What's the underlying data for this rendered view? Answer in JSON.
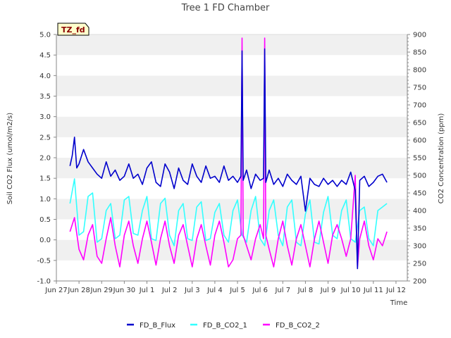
{
  "chart_data": {
    "type": "line",
    "title": "Tree 1 FD Chamber",
    "xlabel": "Time",
    "ylabel": "Soil CO2 Flux (umol/m2/s)",
    "y2label": "CO2 Concentration (ppm)",
    "badge": "TZ_fd",
    "x_tick_labels": [
      "Jun 27",
      "Jun 28",
      "Jun 29",
      "Jun 30",
      "Jul 1",
      "Jul 2",
      "Jul 3",
      "Jul 4",
      "Jul 5",
      "Jul 6",
      "Jul 7",
      "Jul 8",
      "Jul 9",
      "Jul 10",
      "Jul 11",
      "Jul 12"
    ],
    "xlim_days": [
      0,
      15.5
    ],
    "ylim": [
      -1.0,
      5.0
    ],
    "yticks": [
      "-1.0",
      "-0.5",
      "0.0",
      "0.5",
      "1.0",
      "1.5",
      "2.0",
      "2.5",
      "3.0",
      "3.5",
      "4.0",
      "4.5",
      "5.0"
    ],
    "y2lim": [
      200,
      900
    ],
    "y2ticks": [
      "200",
      "250",
      "300",
      "350",
      "400",
      "450",
      "500",
      "550",
      "600",
      "650",
      "700",
      "750",
      "800",
      "850",
      "900"
    ],
    "grid": "horizontal bands",
    "legend_position": "bottom",
    "series": [
      {
        "name": "FD_B_Flux",
        "axis": "left",
        "color": "#0000cc",
        "x_days": [
          0.6,
          0.7,
          0.8,
          0.9,
          1.0,
          1.2,
          1.4,
          1.6,
          1.8,
          2.0,
          2.2,
          2.4,
          2.6,
          2.8,
          3.0,
          3.2,
          3.4,
          3.6,
          3.8,
          4.0,
          4.2,
          4.4,
          4.6,
          4.8,
          5.0,
          5.2,
          5.4,
          5.6,
          5.8,
          6.0,
          6.2,
          6.4,
          6.6,
          6.8,
          7.0,
          7.2,
          7.4,
          7.6,
          7.8,
          8.0,
          8.15,
          8.2,
          8.25,
          8.4,
          8.6,
          8.8,
          9.0,
          9.15,
          9.2,
          9.25,
          9.4,
          9.6,
          9.8,
          10.0,
          10.2,
          10.4,
          10.6,
          10.8,
          11.0,
          11.2,
          11.4,
          11.6,
          11.8,
          12.0,
          12.2,
          12.4,
          12.6,
          12.8,
          13.0,
          13.2,
          13.3,
          13.4,
          13.6,
          13.8,
          14.0,
          14.2,
          14.4,
          14.6
        ],
        "values": [
          1.8,
          2.05,
          2.5,
          1.75,
          1.85,
          2.2,
          1.9,
          1.75,
          1.6,
          1.5,
          1.9,
          1.55,
          1.7,
          1.45,
          1.55,
          1.85,
          1.5,
          1.6,
          1.35,
          1.75,
          1.9,
          1.4,
          1.3,
          1.85,
          1.65,
          1.25,
          1.75,
          1.45,
          1.35,
          1.85,
          1.55,
          1.4,
          1.8,
          1.5,
          1.55,
          1.4,
          1.8,
          1.45,
          1.55,
          1.4,
          1.55,
          4.6,
          1.45,
          1.7,
          1.25,
          1.6,
          1.45,
          1.5,
          4.65,
          1.4,
          1.7,
          1.35,
          1.5,
          1.3,
          1.6,
          1.45,
          1.35,
          1.55,
          0.7,
          1.5,
          1.35,
          1.3,
          1.5,
          1.35,
          1.45,
          1.3,
          1.45,
          1.35,
          1.65,
          1.2,
          -0.7,
          1.45,
          1.55,
          1.3,
          1.4,
          1.55,
          1.6,
          1.4
        ]
      },
      {
        "name": "FD_B_CO2_1",
        "axis": "right",
        "color": "#33ffff",
        "x_days": [
          0.6,
          0.8,
          1.0,
          1.2,
          1.4,
          1.6,
          1.8,
          2.0,
          2.2,
          2.4,
          2.6,
          2.8,
          3.0,
          3.2,
          3.4,
          3.6,
          3.8,
          4.0,
          4.2,
          4.4,
          4.6,
          4.8,
          5.0,
          5.2,
          5.4,
          5.6,
          5.8,
          6.0,
          6.2,
          6.4,
          6.6,
          6.8,
          7.0,
          7.2,
          7.4,
          7.6,
          7.8,
          8.0,
          8.2,
          8.4,
          8.6,
          8.8,
          9.0,
          9.2,
          9.4,
          9.6,
          9.8,
          10.0,
          10.2,
          10.4,
          10.6,
          10.8,
          11.0,
          11.2,
          11.4,
          11.6,
          11.8,
          12.0,
          12.2,
          12.4,
          12.6,
          12.8,
          13.0,
          13.2,
          13.4,
          13.6,
          13.8,
          14.0,
          14.2,
          14.4,
          14.6
        ],
        "values": [
          420,
          490,
          330,
          340,
          440,
          450,
          310,
          320,
          400,
          420,
          320,
          330,
          430,
          440,
          335,
          330,
          400,
          440,
          320,
          315,
          420,
          435,
          330,
          300,
          400,
          420,
          320,
          315,
          410,
          425,
          315,
          320,
          395,
          420,
          330,
          310,
          400,
          430,
          330,
          310,
          400,
          440,
          320,
          300,
          400,
          430,
          330,
          300,
          410,
          430,
          310,
          300,
          390,
          430,
          310,
          305,
          395,
          440,
          330,
          320,
          400,
          430,
          320,
          310,
          400,
          410,
          320,
          300,
          400,
          410,
          420
        ]
      },
      {
        "name": "FD_B_CO2_2",
        "axis": "right",
        "color": "#ff00ff",
        "x_days": [
          0.6,
          0.8,
          1.0,
          1.2,
          1.4,
          1.6,
          1.8,
          2.0,
          2.2,
          2.4,
          2.6,
          2.8,
          3.0,
          3.2,
          3.4,
          3.6,
          3.8,
          4.0,
          4.2,
          4.4,
          4.6,
          4.8,
          5.0,
          5.2,
          5.4,
          5.6,
          5.8,
          6.0,
          6.2,
          6.4,
          6.6,
          6.8,
          7.0,
          7.2,
          7.4,
          7.6,
          7.8,
          8.0,
          8.15,
          8.2,
          8.25,
          8.4,
          8.6,
          8.8,
          9.0,
          9.15,
          9.2,
          9.25,
          9.4,
          9.6,
          9.8,
          10.0,
          10.2,
          10.4,
          10.6,
          10.8,
          11.0,
          11.2,
          11.4,
          11.6,
          11.8,
          12.0,
          12.2,
          12.4,
          12.6,
          12.8,
          13.0,
          13.2,
          13.3,
          13.4,
          13.6,
          13.8,
          14.0,
          14.2,
          14.4,
          14.6
        ],
        "values": [
          340,
          380,
          290,
          260,
          330,
          360,
          270,
          250,
          320,
          380,
          300,
          240,
          330,
          370,
          300,
          250,
          320,
          370,
          310,
          245,
          320,
          370,
          300,
          250,
          330,
          360,
          300,
          240,
          320,
          360,
          300,
          245,
          330,
          370,
          310,
          240,
          260,
          320,
          330,
          890,
          330,
          300,
          260,
          320,
          360,
          320,
          890,
          330,
          290,
          240,
          320,
          370,
          300,
          245,
          320,
          360,
          300,
          240,
          320,
          370,
          310,
          250,
          330,
          360,
          320,
          270,
          320,
          500,
          240,
          320,
          370,
          300,
          260,
          320,
          300,
          340
        ]
      }
    ]
  }
}
